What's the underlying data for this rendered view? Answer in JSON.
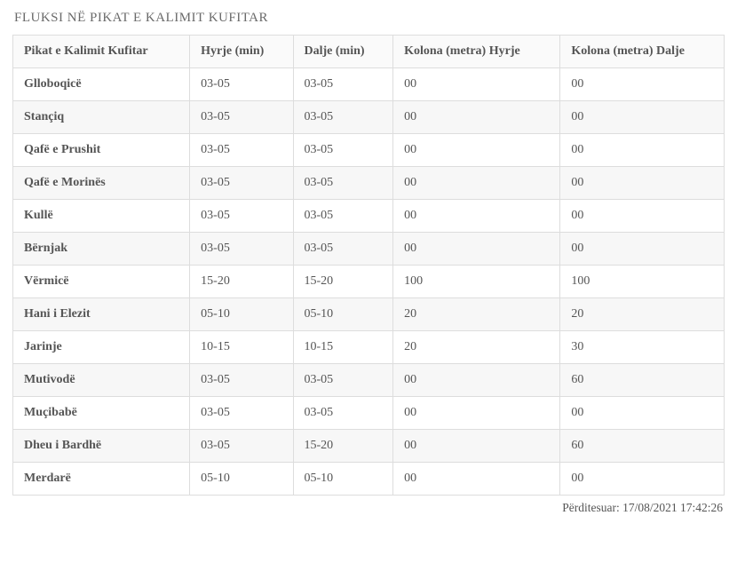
{
  "title": "FLUKSI NË PIKAT E KALIMIT KUFITAR",
  "columns": [
    "Pikat e Kalimit Kufitar",
    "Hyrje (min)",
    "Dalje (min)",
    "Kolona (metra) Hyrje",
    "Kolona (metra) Dalje"
  ],
  "rows": [
    {
      "name": "Glloboqicë",
      "in": "03-05",
      "out": "03-05",
      "colIn": "00",
      "colOut": "00"
    },
    {
      "name": "Stançiq",
      "in": "03-05",
      "out": "03-05",
      "colIn": "00",
      "colOut": "00"
    },
    {
      "name": "Qafë e Prushit",
      "in": "03-05",
      "out": "03-05",
      "colIn": "00",
      "colOut": "00"
    },
    {
      "name": "Qafë e Morinës",
      "in": "03-05",
      "out": "03-05",
      "colIn": "00",
      "colOut": "00"
    },
    {
      "name": "Kullë",
      "in": "03-05",
      "out": "03-05",
      "colIn": "00",
      "colOut": "00"
    },
    {
      "name": "Bërnjak",
      "in": "03-05",
      "out": "03-05",
      "colIn": "00",
      "colOut": "00"
    },
    {
      "name": "Vërmicë",
      "in": "15-20",
      "out": "15-20",
      "colIn": "100",
      "colOut": "100"
    },
    {
      "name": "Hani i Elezit",
      "in": "05-10",
      "out": "05-10",
      "colIn": "20",
      "colOut": "20"
    },
    {
      "name": "Jarinje",
      "in": "10-15",
      "out": "10-15",
      "colIn": "20",
      "colOut": "30"
    },
    {
      "name": "Mutivodë",
      "in": "03-05",
      "out": "03-05",
      "colIn": "00",
      "colOut": "60"
    },
    {
      "name": "Muçibabë",
      "in": "03-05",
      "out": "03-05",
      "colIn": "00",
      "colOut": "00"
    },
    {
      "name": "Dheu i Bardhë",
      "in": "03-05",
      "out": "15-20",
      "colIn": "00",
      "colOut": "60"
    },
    {
      "name": "Merdarë",
      "in": "05-10",
      "out": "05-10",
      "colIn": "00",
      "colOut": "00"
    }
  ],
  "updatedLabel": "Përditesuar:",
  "updatedValue": "17/08/2021 17:42:26",
  "style": {
    "header_bg": "#fafafa",
    "row_alt_bg": "#f7f7f7",
    "border_color": "#dddddd",
    "text_color": "#555555",
    "font_family": "Georgia, serif"
  }
}
